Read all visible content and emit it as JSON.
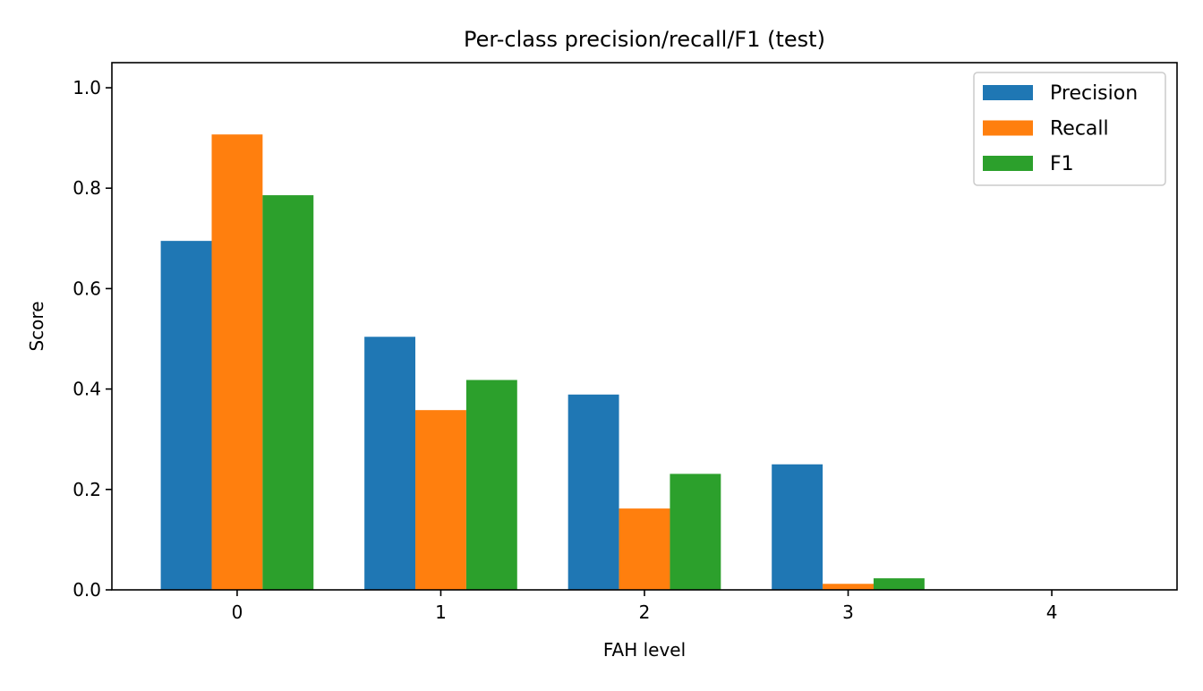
{
  "chart_data": {
    "type": "bar",
    "title": "Per-class precision/recall/F1 (test)",
    "xlabel": "FAH level",
    "ylabel": "Score",
    "categories": [
      "0",
      "1",
      "2",
      "3",
      "4"
    ],
    "ylim": [
      0,
      1.05
    ],
    "yticks": [
      0.0,
      0.2,
      0.4,
      0.6,
      0.8,
      1.0
    ],
    "ytick_labels": [
      "0.0",
      "0.2",
      "0.4",
      "0.6",
      "0.8",
      "1.0"
    ],
    "grid": false,
    "legend_position": "top-right",
    "series": [
      {
        "name": "Precision",
        "color": "#1f77b4",
        "values": [
          0.695,
          0.504,
          0.389,
          0.25,
          0.0
        ]
      },
      {
        "name": "Recall",
        "color": "#ff7f0e",
        "values": [
          0.907,
          0.358,
          0.162,
          0.012,
          0.0
        ]
      },
      {
        "name": "F1",
        "color": "#2ca02c",
        "values": [
          0.786,
          0.418,
          0.231,
          0.023,
          0.0
        ]
      }
    ]
  }
}
